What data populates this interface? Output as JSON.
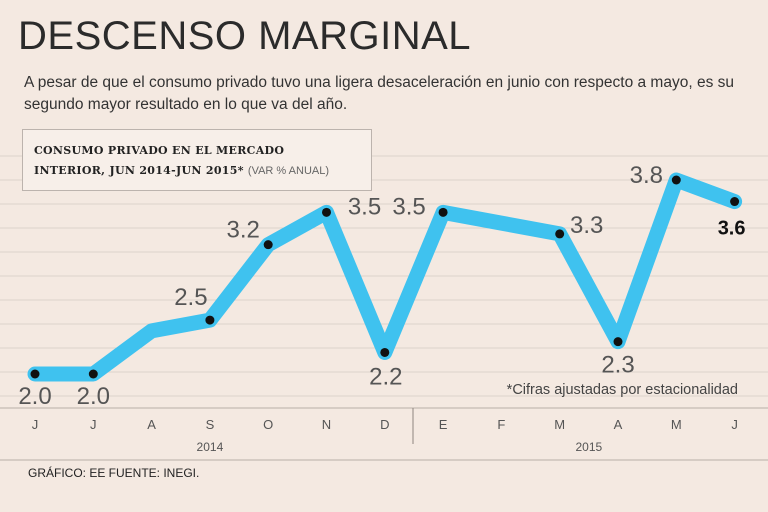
{
  "header": {
    "title": "DESCENSO MARGINAL",
    "subtitle": "A pesar de que el consumo privado tuvo una ligera desaceleración en junio con respecto a mayo, es su segundo mayor resultado en lo que va del año."
  },
  "legend": {
    "line1": "CONSUMO PRIVADO EN EL MERCADO",
    "line2": "INTERIOR, JUN 2014-JUN 2015*",
    "unit": "(VAR % ANUAL)"
  },
  "note": "*Cifras ajustadas por estacionalidad",
  "credits": "GRÁFICO: EE  FUENTE: INEGI.",
  "colors": {
    "line": "#3fc2ef",
    "point": "#111111",
    "background": "#f4e9e1",
    "grid": "#ddd2ca"
  },
  "chart_data": {
    "type": "line",
    "title": "CONSUMO PRIVADO EN EL MERCADO INTERIOR, JUN 2014-JUN 2015*",
    "ylabel": "VAR % ANUAL",
    "xlabel": "",
    "categories": [
      "J",
      "J",
      "A",
      "S",
      "O",
      "N",
      "D",
      "E",
      "F",
      "M",
      "A",
      "M",
      "J"
    ],
    "years": [
      {
        "label": "2014",
        "start": 0,
        "end": 6
      },
      {
        "label": "2015",
        "start": 7,
        "end": 12
      }
    ],
    "series": [
      {
        "name": "Consumo privado",
        "values": [
          2.0,
          2.0,
          2.4,
          2.5,
          3.2,
          3.5,
          2.2,
          3.5,
          3.4,
          3.3,
          2.3,
          3.8,
          3.6
        ]
      }
    ],
    "point_labels": [
      {
        "index": 0,
        "text": "2.0"
      },
      {
        "index": 1,
        "text": "2.0"
      },
      {
        "index": 3,
        "text": "2.5"
      },
      {
        "index": 4,
        "text": "3.2"
      },
      {
        "index": 5,
        "text": "3.5"
      },
      {
        "index": 6,
        "text": "2.2"
      },
      {
        "index": 7,
        "text": "3.5"
      },
      {
        "index": 9,
        "text": "3.3"
      },
      {
        "index": 10,
        "text": "2.3"
      },
      {
        "index": 11,
        "text": "3.8"
      },
      {
        "index": 12,
        "text": "3.6",
        "bold": true
      }
    ],
    "points_marked": [
      0,
      1,
      3,
      4,
      5,
      6,
      7,
      9,
      10,
      11,
      12
    ],
    "ylim": [
      1.5,
      4.2
    ],
    "grid": true
  }
}
